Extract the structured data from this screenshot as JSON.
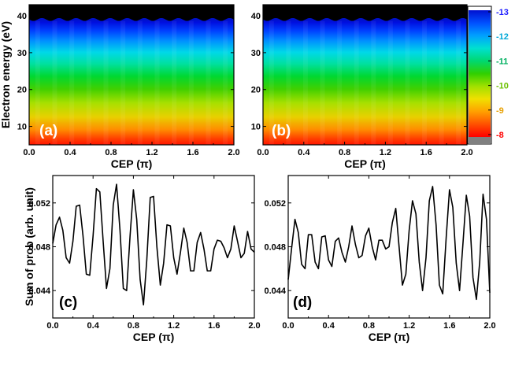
{
  "chart_data": [
    {
      "type": "heatmap",
      "panel_label": "(a)",
      "xlabel": "CEP (π)",
      "ylabel": "Electron energy (eV)",
      "xlim": [
        0.0,
        2.0
      ],
      "ylim": [
        5,
        43
      ],
      "xticks": [
        "0.0",
        "0.4",
        "0.8",
        "1.2",
        "1.6",
        "2.0"
      ],
      "yticks": [
        "10",
        "20",
        "30",
        "40"
      ],
      "description_values": {
        "energy_band_min_eV": 5,
        "energy_band_max_eV": 39,
        "oscillation_periods_over_2pi": 12
      }
    },
    {
      "type": "heatmap",
      "panel_label": "(b)",
      "xlabel": "CEP (π)",
      "ylabel": "",
      "xlim": [
        0.0,
        2.0
      ],
      "ylim": [
        5,
        43
      ],
      "xticks": [
        "0.0",
        "0.4",
        "0.8",
        "1.2",
        "1.6",
        "2.0"
      ],
      "yticks": [
        "10",
        "20",
        "30",
        "40"
      ],
      "description_values": {
        "energy_band_min_eV": 5,
        "energy_band_max_eV": 39,
        "oscillation_periods_over_2pi": 12
      }
    },
    {
      "type": "colorbar",
      "range": [
        -13,
        -8
      ],
      "ticks": [
        "-13",
        "-12",
        "-11",
        "-10",
        "-9",
        "-8"
      ],
      "tick_colors": [
        "#1a1aff",
        "#00a8d8",
        "#00b060",
        "#6cc000",
        "#e8a000",
        "#ff0000"
      ]
    },
    {
      "type": "line",
      "panel_label": "(c)",
      "xlabel": "CEP (π)",
      "ylabel": "Sum of prob (arb. unit)",
      "xlim": [
        0.0,
        2.0
      ],
      "ylim": [
        0.0415,
        0.0545
      ],
      "xticks": [
        "0.0",
        "0.4",
        "0.8",
        "1.2",
        "1.6",
        "2.0"
      ],
      "yticks": [
        "0.044",
        "0.048",
        "0.052"
      ],
      "x": [
        0.0,
        0.033,
        0.067,
        0.1,
        0.133,
        0.167,
        0.2,
        0.233,
        0.267,
        0.3,
        0.333,
        0.367,
        0.4,
        0.433,
        0.467,
        0.5,
        0.533,
        0.567,
        0.6,
        0.633,
        0.667,
        0.7,
        0.733,
        0.767,
        0.8,
        0.833,
        0.867,
        0.9,
        0.933,
        0.967,
        1.0,
        1.033,
        1.067,
        1.1,
        1.133,
        1.167,
        1.2,
        1.233,
        1.267,
        1.3,
        1.333,
        1.367,
        1.4,
        1.433,
        1.467,
        1.5,
        1.533,
        1.567,
        1.6,
        1.633,
        1.667,
        1.7,
        1.733,
        1.767,
        1.8,
        1.833,
        1.867,
        1.9,
        1.933,
        1.967,
        2.0
      ],
      "y": [
        0.0483,
        0.05,
        0.0507,
        0.0495,
        0.047,
        0.0465,
        0.0485,
        0.0517,
        0.0518,
        0.049,
        0.0455,
        0.0454,
        0.049,
        0.0533,
        0.053,
        0.0485,
        0.0442,
        0.046,
        0.0518,
        0.0537,
        0.0495,
        0.0442,
        0.044,
        0.049,
        0.0532,
        0.0505,
        0.045,
        0.0427,
        0.0468,
        0.0525,
        0.0526,
        0.048,
        0.0445,
        0.0465,
        0.05,
        0.0499,
        0.047,
        0.0455,
        0.0475,
        0.0497,
        0.0484,
        0.0458,
        0.0458,
        0.0484,
        0.0493,
        0.0478,
        0.0458,
        0.0458,
        0.0478,
        0.0486,
        0.0485,
        0.0479,
        0.047,
        0.0478,
        0.0499,
        0.0485,
        0.047,
        0.0474,
        0.0494,
        0.0478,
        0.0475
      ]
    },
    {
      "type": "line",
      "panel_label": "(d)",
      "xlabel": "CEP (π)",
      "ylabel": "",
      "xlim": [
        0.0,
        2.0
      ],
      "ylim": [
        0.0415,
        0.0545
      ],
      "xticks": [
        "0.0",
        "0.4",
        "0.8",
        "1.2",
        "1.6",
        "2.0"
      ],
      "yticks": [
        "0.044",
        "0.048",
        "0.052"
      ],
      "x": [
        0.0,
        0.033,
        0.067,
        0.1,
        0.133,
        0.167,
        0.2,
        0.233,
        0.267,
        0.3,
        0.333,
        0.367,
        0.4,
        0.433,
        0.467,
        0.5,
        0.533,
        0.567,
        0.6,
        0.633,
        0.667,
        0.7,
        0.733,
        0.767,
        0.8,
        0.833,
        0.867,
        0.9,
        0.933,
        0.967,
        1.0,
        1.033,
        1.067,
        1.1,
        1.133,
        1.167,
        1.2,
        1.233,
        1.267,
        1.3,
        1.333,
        1.367,
        1.4,
        1.433,
        1.467,
        1.5,
        1.533,
        1.567,
        1.6,
        1.633,
        1.667,
        1.7,
        1.733,
        1.767,
        1.8,
        1.833,
        1.867,
        1.9,
        1.933,
        1.967,
        2.0
      ],
      "y": [
        0.045,
        0.0478,
        0.0505,
        0.0493,
        0.0464,
        0.046,
        0.0491,
        0.0491,
        0.0466,
        0.046,
        0.0489,
        0.049,
        0.0468,
        0.0462,
        0.0485,
        0.0488,
        0.0475,
        0.0466,
        0.048,
        0.0499,
        0.0482,
        0.047,
        0.0472,
        0.049,
        0.0497,
        0.048,
        0.0468,
        0.0486,
        0.0486,
        0.0478,
        0.048,
        0.0502,
        0.0515,
        0.048,
        0.0445,
        0.0455,
        0.0495,
        0.0522,
        0.051,
        0.0466,
        0.044,
        0.047,
        0.0522,
        0.0535,
        0.05,
        0.0445,
        0.0437,
        0.0488,
        0.0532,
        0.0516,
        0.0465,
        0.044,
        0.0482,
        0.0527,
        0.0508,
        0.0452,
        0.0432,
        0.0466,
        0.0528,
        0.0505,
        0.0438
      ]
    }
  ]
}
